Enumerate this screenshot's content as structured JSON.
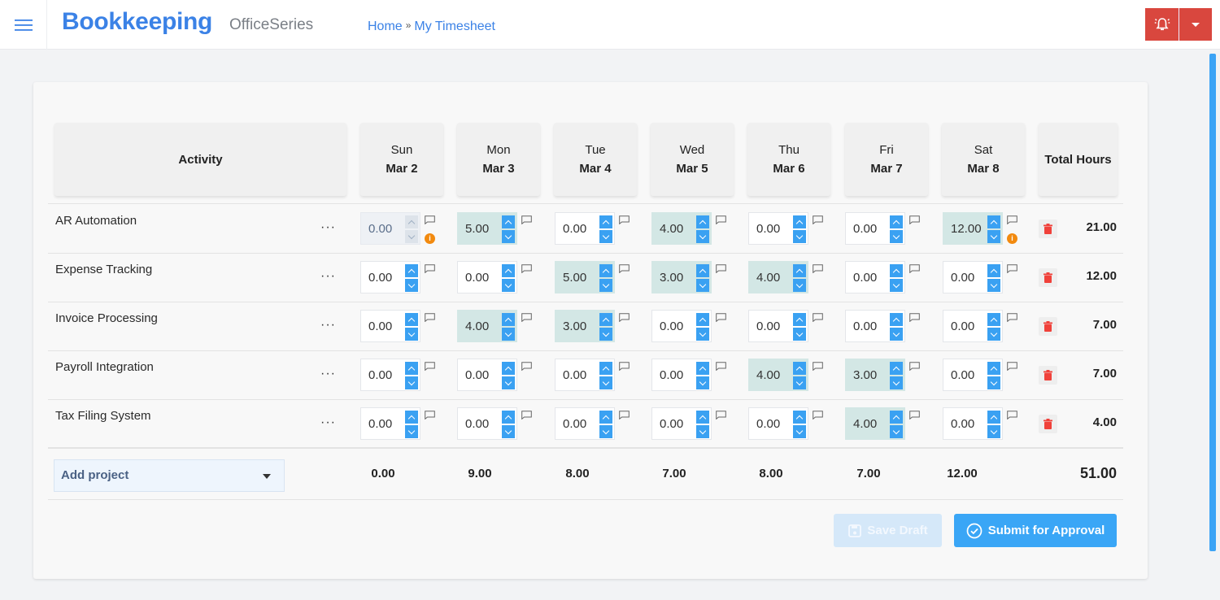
{
  "header": {
    "app_title": "Bookkeeping",
    "app_subtitle": "OfficeSeries",
    "breadcrumb": [
      {
        "label": "Home"
      },
      {
        "label": "My Timesheet"
      }
    ],
    "breadcrumb_separator": "»",
    "alarm_icon": "bell-alarm-icon",
    "colors": {
      "brand": "#3b82e6",
      "alarm": "#d9473e"
    }
  },
  "table": {
    "activity_header": "Activity",
    "total_header": "Total Hours",
    "days": [
      {
        "day": "Sun",
        "date": "Mar 2"
      },
      {
        "day": "Mon",
        "date": "Mar 3"
      },
      {
        "day": "Tue",
        "date": "Mar 4"
      },
      {
        "day": "Wed",
        "date": "Mar 5"
      },
      {
        "day": "Thu",
        "date": "Mar 6"
      },
      {
        "day": "Fri",
        "date": "Mar 7"
      },
      {
        "day": "Sat",
        "date": "Mar 8"
      }
    ],
    "rows": [
      {
        "activity": "AR Automation",
        "menu": "···",
        "hours": [
          "0.00",
          "5.00",
          "0.00",
          "4.00",
          "0.00",
          "0.00",
          "12.00"
        ],
        "total": "21.00"
      },
      {
        "activity": "Expense Tracking",
        "menu": "···",
        "hours": [
          "0.00",
          "0.00",
          "5.00",
          "3.00",
          "4.00",
          "0.00",
          "0.00"
        ],
        "total": "12.00"
      },
      {
        "activity": "Invoice Processing",
        "menu": "···",
        "hours": [
          "0.00",
          "4.00",
          "3.00",
          "0.00",
          "0.00",
          "0.00",
          "0.00"
        ],
        "total": "7.00"
      },
      {
        "activity": "Payroll Integration",
        "menu": "···",
        "hours": [
          "0.00",
          "0.00",
          "0.00",
          "0.00",
          "4.00",
          "3.00",
          "0.00"
        ],
        "total": "7.00"
      },
      {
        "activity": "Tax Filing System",
        "menu": "···",
        "hours": [
          "0.00",
          "0.00",
          "0.00",
          "0.00",
          "0.00",
          "4.00",
          "0.00"
        ],
        "total": "4.00"
      }
    ],
    "footer": {
      "add_project_label": "Add project",
      "day_totals": [
        "0.00",
        "9.00",
        "8.00",
        "7.00",
        "8.00",
        "7.00",
        "12.00"
      ],
      "grand_total": "51.00"
    }
  },
  "actions": {
    "save_draft": "Save Draft",
    "submit": "Submit for Approval"
  },
  "colors": {
    "filled_cell": "#d3e7e5",
    "spinner": "#3aa1f2",
    "info_badge": "#f28a0f",
    "trash": "#f0413a",
    "submit": "#3aa6f6"
  }
}
